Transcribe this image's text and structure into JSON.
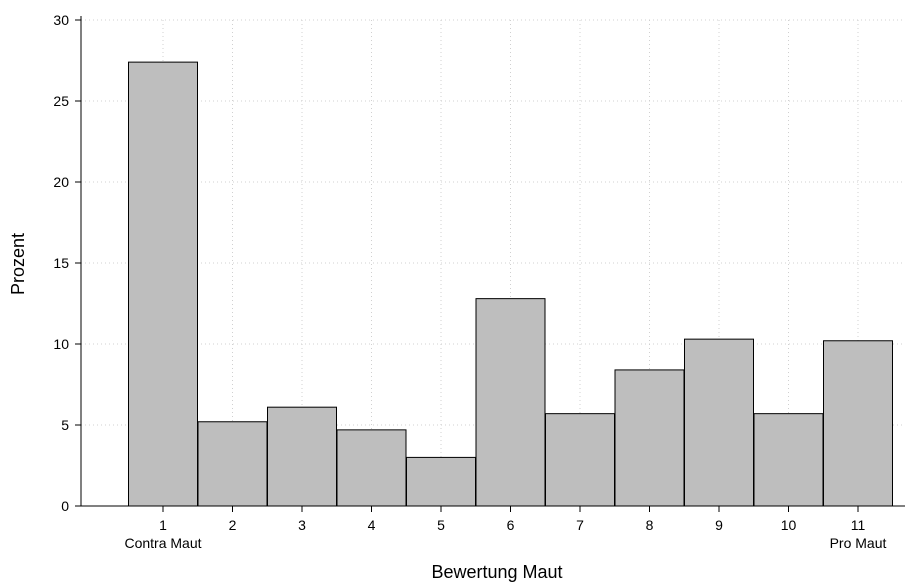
{
  "chart_data": {
    "type": "bar",
    "categories": [
      "1",
      "2",
      "3",
      "4",
      "5",
      "6",
      "7",
      "8",
      "9",
      "10",
      "11"
    ],
    "values": [
      27.4,
      5.2,
      6.1,
      4.7,
      3.0,
      12.8,
      5.7,
      8.4,
      10.3,
      5.7,
      10.2
    ],
    "xlabel": "Bewertung Maut",
    "ylabel": "Prozent",
    "ylim": [
      0,
      30
    ],
    "yticks": [
      0,
      5,
      10,
      15,
      20,
      25,
      30
    ],
    "category_sublabels": {
      "1": "Contra Maut",
      "11": "Pro Maut"
    },
    "grid": true,
    "colors": {
      "bar_fill": "#bebebe",
      "bar_stroke": "#000000",
      "grid": "#d0d0d0"
    }
  }
}
